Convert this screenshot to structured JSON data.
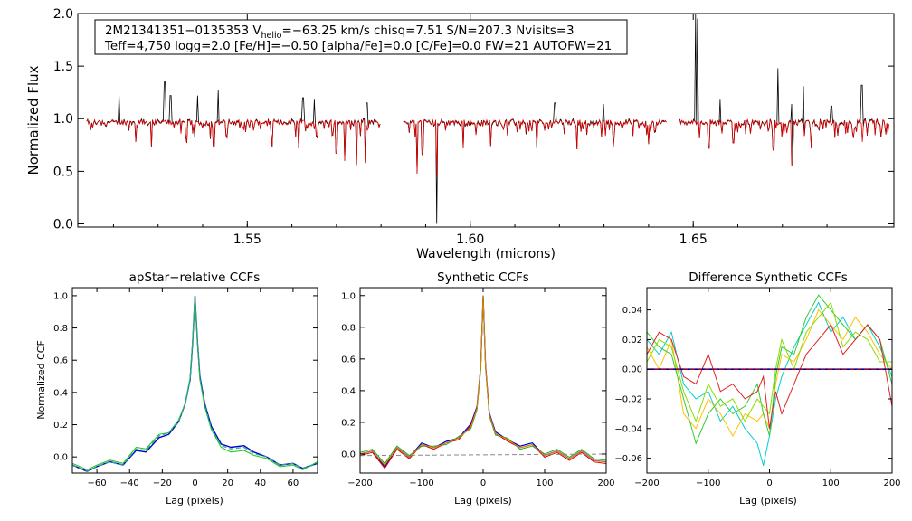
{
  "chart_data": [
    {
      "type": "line",
      "id": "spectrum",
      "title": "",
      "xlabel": "Wavelength (microns)",
      "ylabel": "Normalized Flux",
      "xlim": [
        1.512,
        1.695
      ],
      "ylim": [
        -0.03,
        2.0
      ],
      "xticks": [
        1.55,
        1.6,
        1.65
      ],
      "xtick_labels": [
        "1.55",
        "1.60",
        "1.65"
      ],
      "yticks": [
        0.0,
        0.5,
        1.0,
        1.5,
        2.0
      ],
      "ytick_labels": [
        "0.0",
        "0.5",
        "1.0",
        "1.5",
        "2.0"
      ],
      "info_box": {
        "line1_prefix": "2M21341351−0135353  V",
        "line1_sub": "helio",
        "line1_suffix": "=−63.25 km/s  chisq=7.51  S/N=207.3  Nvisits=3",
        "line2": "Teff=4,750 logg=2.0 [Fe/H]=−0.50 [alpha/Fe]=0.0 [C/Fe]=0.0 FW=21 AUTOFW=21"
      },
      "chips": [
        [
          1.514,
          1.58
        ],
        [
          1.585,
          1.644
        ],
        [
          1.647,
          1.694
        ]
      ],
      "series": [
        {
          "name": "observed",
          "color": "#000000"
        },
        {
          "name": "model",
          "color": "#dd0000"
        }
      ],
      "emission_spikes": [
        {
          "x": 1.5212,
          "y": 1.23
        },
        {
          "x": 1.5315,
          "y": 1.35
        },
        {
          "x": 1.5328,
          "y": 1.22
        },
        {
          "x": 1.5388,
          "y": 1.22
        },
        {
          "x": 1.5435,
          "y": 1.27
        },
        {
          "x": 1.5625,
          "y": 1.2
        },
        {
          "x": 1.565,
          "y": 1.18
        },
        {
          "x": 1.5768,
          "y": 1.15
        },
        {
          "x": 1.619,
          "y": 1.15
        },
        {
          "x": 1.6298,
          "y": 1.14
        },
        {
          "x": 1.6505,
          "y": 2.0
        },
        {
          "x": 1.6509,
          "y": 1.95
        },
        {
          "x": 1.6561,
          "y": 1.18
        },
        {
          "x": 1.669,
          "y": 1.48
        },
        {
          "x": 1.672,
          "y": 1.14
        },
        {
          "x": 1.6747,
          "y": 1.31
        },
        {
          "x": 1.681,
          "y": 1.12
        },
        {
          "x": 1.6878,
          "y": 1.32
        }
      ],
      "absorption_dips": [
        {
          "x": 1.525,
          "y": 0.78
        },
        {
          "x": 1.5285,
          "y": 0.73
        },
        {
          "x": 1.5365,
          "y": 0.77
        },
        {
          "x": 1.5425,
          "y": 0.74
        },
        {
          "x": 1.5555,
          "y": 0.73
        },
        {
          "x": 1.5615,
          "y": 0.72
        },
        {
          "x": 1.57,
          "y": 0.67
        },
        {
          "x": 1.5718,
          "y": 0.6
        },
        {
          "x": 1.5745,
          "y": 0.56
        },
        {
          "x": 1.5765,
          "y": 0.58
        },
        {
          "x": 1.588,
          "y": 0.48
        },
        {
          "x": 1.5893,
          "y": 0.66
        },
        {
          "x": 1.5925,
          "y": 0.0
        },
        {
          "x": 1.5985,
          "y": 0.72
        },
        {
          "x": 1.6045,
          "y": 0.74
        },
        {
          "x": 1.615,
          "y": 0.72
        },
        {
          "x": 1.624,
          "y": 0.71
        },
        {
          "x": 1.632,
          "y": 0.73
        },
        {
          "x": 1.64,
          "y": 0.76
        },
        {
          "x": 1.6535,
          "y": 0.72
        },
        {
          "x": 1.659,
          "y": 0.77
        },
        {
          "x": 1.668,
          "y": 0.7
        },
        {
          "x": 1.6722,
          "y": 0.56
        },
        {
          "x": 1.6765,
          "y": 0.72
        },
        {
          "x": 1.688,
          "y": 0.78
        }
      ]
    },
    {
      "type": "line",
      "id": "apstar-ccf",
      "title": "apStar−relative CCFs",
      "xlabel": "Lag (pixels)",
      "ylabel": "Normalized CCF",
      "xlim": [
        -75,
        75
      ],
      "ylim": [
        -0.1,
        1.05
      ],
      "xticks": [
        -60,
        -40,
        -20,
        0,
        20,
        40,
        60
      ],
      "xtick_labels": [
        "−60",
        "−40",
        "−20",
        "0",
        "20",
        "40",
        "60"
      ],
      "yticks": [
        0.0,
        0.2,
        0.4,
        0.6,
        0.8,
        1.0
      ],
      "ytick_labels": [
        "0.0",
        "0.2",
        "0.4",
        "0.6",
        "0.8",
        "1.0"
      ],
      "series": [
        {
          "name": "visit-blue",
          "color": "#0000cc",
          "width": 1.4,
          "x": [
            -75,
            -66,
            -60,
            -52,
            -44,
            -36,
            -30,
            -22,
            -16,
            -10,
            -6,
            -3,
            -1.5,
            0,
            1.5,
            3,
            6,
            10,
            16,
            22,
            30,
            36,
            44,
            52,
            60,
            66,
            75
          ],
          "y": [
            -0.05,
            -0.09,
            -0.06,
            -0.03,
            -0.05,
            0.04,
            0.03,
            0.12,
            0.14,
            0.22,
            0.33,
            0.48,
            0.7,
            1.0,
            0.72,
            0.5,
            0.33,
            0.19,
            0.08,
            0.06,
            0.07,
            0.03,
            0.0,
            -0.05,
            -0.04,
            -0.07,
            -0.04
          ]
        },
        {
          "name": "visit-green",
          "color": "#22cc22",
          "width": 1.1,
          "x": [
            -75,
            -66,
            -60,
            -52,
            -44,
            -36,
            -30,
            -22,
            -16,
            -10,
            -6,
            -3,
            -1.5,
            0,
            1.5,
            3,
            6,
            10,
            16,
            22,
            30,
            36,
            44,
            52,
            60,
            66,
            75
          ],
          "y": [
            -0.04,
            -0.08,
            -0.05,
            -0.02,
            -0.04,
            0.06,
            0.05,
            0.14,
            0.15,
            0.23,
            0.33,
            0.49,
            0.71,
            1.0,
            0.71,
            0.48,
            0.31,
            0.17,
            0.06,
            0.03,
            0.04,
            0.01,
            -0.01,
            -0.06,
            -0.05,
            -0.08,
            -0.03
          ]
        },
        {
          "name": "visit-teal-dashed",
          "color": "#2aa198",
          "width": 1.1,
          "dashed": true,
          "x": [
            -75,
            -66,
            -60,
            -52,
            -44,
            -36,
            -30,
            -22,
            -16,
            -10,
            -6,
            -3,
            -1.5,
            0,
            1.5,
            3,
            6,
            10,
            16,
            22,
            30,
            36,
            44,
            52,
            60,
            66,
            75
          ],
          "y": [
            -0.05,
            -0.09,
            -0.06,
            -0.03,
            -0.05,
            0.05,
            0.04,
            0.13,
            0.15,
            0.22,
            0.33,
            0.48,
            0.7,
            1.0,
            0.72,
            0.49,
            0.32,
            0.18,
            0.07,
            0.05,
            0.06,
            0.02,
            0.0,
            -0.05,
            -0.04,
            -0.07,
            -0.04
          ]
        }
      ]
    },
    {
      "type": "line",
      "id": "synthetic-ccf",
      "title": "Synthetic CCFs",
      "xlabel": "Lag (pixels)",
      "ylabel": "",
      "xlim": [
        -200,
        200
      ],
      "ylim": [
        -0.12,
        1.05
      ],
      "xticks": [
        -200,
        -100,
        0,
        100,
        200
      ],
      "xtick_labels": [
        "−200",
        "−100",
        "0",
        "100",
        "200"
      ],
      "yticks": [
        0.0,
        0.2,
        0.4,
        0.6,
        0.8,
        1.0
      ],
      "ytick_labels": [
        "0.0",
        "0.2",
        "0.4",
        "0.6",
        "0.8",
        "1.0"
      ],
      "series": [
        {
          "name": "synth-blue",
          "color": "#0000cc",
          "width": 1.2,
          "x": [
            -200,
            -180,
            -160,
            -140,
            -120,
            -100,
            -80,
            -60,
            -40,
            -20,
            -10,
            -4,
            0,
            4,
            10,
            20,
            40,
            60,
            80,
            100,
            120,
            140,
            160,
            180,
            200
          ],
          "y": [
            0.0,
            0.02,
            -0.08,
            0.04,
            -0.02,
            0.07,
            0.04,
            0.08,
            0.1,
            0.19,
            0.3,
            0.55,
            1.0,
            0.56,
            0.26,
            0.14,
            0.09,
            0.05,
            0.07,
            -0.01,
            0.02,
            -0.03,
            0.02,
            -0.04,
            -0.05
          ]
        },
        {
          "name": "synth-red",
          "color": "#dd0000",
          "width": 1.0,
          "x": [
            -200,
            -180,
            -160,
            -140,
            -120,
            -100,
            -80,
            -60,
            -40,
            -20,
            -10,
            -4,
            0,
            4,
            10,
            20,
            40,
            60,
            80,
            100,
            120,
            140,
            160,
            180,
            200
          ],
          "y": [
            -0.01,
            0.01,
            -0.09,
            0.03,
            -0.03,
            0.06,
            0.03,
            0.07,
            0.09,
            0.18,
            0.29,
            0.54,
            1.0,
            0.55,
            0.25,
            0.13,
            0.08,
            0.04,
            0.06,
            -0.02,
            0.01,
            -0.04,
            0.01,
            -0.05,
            -0.06
          ]
        },
        {
          "name": "synth-green",
          "color": "#22aa22",
          "width": 1.0,
          "x": [
            -200,
            -180,
            -160,
            -140,
            -120,
            -100,
            -80,
            -60,
            -40,
            -20,
            -10,
            -4,
            0,
            4,
            10,
            20,
            40,
            60,
            80,
            100,
            120,
            140,
            160,
            180,
            200
          ],
          "y": [
            0.01,
            0.03,
            -0.06,
            0.05,
            -0.01,
            0.05,
            0.05,
            0.06,
            0.11,
            0.16,
            0.28,
            0.53,
            1.0,
            0.54,
            0.24,
            0.12,
            0.1,
            0.03,
            0.05,
            0.0,
            0.03,
            -0.02,
            0.03,
            -0.03,
            -0.04
          ]
        },
        {
          "name": "synth-orange",
          "color": "#e08000",
          "width": 1.0,
          "x": [
            -200,
            -180,
            -160,
            -140,
            -120,
            -100,
            -80,
            -60,
            -40,
            -20,
            -10,
            -4,
            0,
            4,
            10,
            20,
            40,
            60,
            80,
            100,
            120,
            140,
            160,
            180,
            200
          ],
          "y": [
            0.0,
            0.02,
            -0.07,
            0.04,
            -0.02,
            0.06,
            0.04,
            0.07,
            0.1,
            0.17,
            0.29,
            0.55,
            1.0,
            0.55,
            0.25,
            0.13,
            0.09,
            0.04,
            0.06,
            -0.01,
            0.02,
            -0.03,
            0.02,
            -0.04,
            -0.05
          ]
        },
        {
          "name": "synth-baseline-dashed",
          "color": "#888888",
          "width": 1.0,
          "dashed": true,
          "x": [
            -200,
            200
          ],
          "y": [
            -0.01,
            0.0
          ]
        }
      ]
    },
    {
      "type": "line",
      "id": "difference-ccf",
      "title": "Difference Synthetic CCFs",
      "xlabel": "Lag (pixels)",
      "ylabel": "",
      "xlim": [
        -200,
        200
      ],
      "ylim": [
        -0.07,
        0.055
      ],
      "xticks": [
        -200,
        -100,
        0,
        100,
        200
      ],
      "xtick_labels": [
        "−200",
        "−100",
        "0",
        "100",
        "200"
      ],
      "yticks": [
        -0.06,
        -0.04,
        -0.02,
        0.0,
        0.02,
        0.04
      ],
      "ytick_labels": [
        "−0.06",
        "−0.04",
        "−0.02",
        "0.00",
        "0.02",
        "0.04"
      ],
      "series": [
        {
          "name": "diff-cyan",
          "color": "#00d0d0",
          "width": 1.0,
          "x": [
            -200,
            -180,
            -160,
            -140,
            -120,
            -100,
            -80,
            -60,
            -40,
            -20,
            -10,
            0,
            10,
            20,
            40,
            60,
            80,
            100,
            120,
            140,
            160,
            180,
            200
          ],
          "y": [
            0.02,
            0.01,
            0.025,
            -0.01,
            -0.02,
            -0.015,
            -0.035,
            -0.025,
            -0.04,
            -0.05,
            -0.065,
            -0.045,
            -0.02,
            -0.005,
            0.015,
            0.03,
            0.045,
            0.025,
            0.035,
            0.02,
            0.03,
            0.015,
            -0.005
          ]
        },
        {
          "name": "diff-orange",
          "color": "#ffc000",
          "width": 1.0,
          "x": [
            -200,
            -180,
            -160,
            -140,
            -120,
            -100,
            -80,
            -60,
            -40,
            -20,
            -10,
            0,
            10,
            20,
            40,
            60,
            80,
            100,
            120,
            140,
            160,
            180,
            200
          ],
          "y": [
            0.015,
            0.0,
            0.02,
            -0.03,
            -0.04,
            -0.02,
            -0.03,
            -0.045,
            -0.03,
            -0.035,
            -0.03,
            -0.04,
            -0.01,
            0.01,
            0.005,
            0.02,
            0.04,
            0.03,
            0.02,
            0.035,
            0.025,
            0.01,
            0.0
          ]
        },
        {
          "name": "diff-green",
          "color": "#33cc33",
          "width": 1.0,
          "x": [
            -200,
            -180,
            -160,
            -140,
            -120,
            -100,
            -80,
            -60,
            -40,
            -20,
            -10,
            0,
            10,
            20,
            40,
            60,
            80,
            100,
            120,
            140,
            160,
            180,
            200
          ],
          "y": [
            0.025,
            0.015,
            0.01,
            -0.02,
            -0.05,
            -0.03,
            -0.02,
            -0.03,
            -0.025,
            -0.01,
            -0.03,
            -0.045,
            -0.005,
            0.015,
            0.01,
            0.035,
            0.05,
            0.04,
            0.03,
            0.02,
            0.03,
            0.02,
            -0.01
          ]
        },
        {
          "name": "diff-lime",
          "color": "#88dd00",
          "width": 1.0,
          "x": [
            -200,
            -180,
            -160,
            -140,
            -120,
            -100,
            -80,
            -60,
            -40,
            -20,
            -10,
            0,
            10,
            20,
            40,
            60,
            80,
            100,
            120,
            140,
            160,
            180,
            200
          ],
          "y": [
            0.005,
            0.02,
            0.015,
            -0.015,
            -0.035,
            -0.01,
            -0.025,
            -0.02,
            -0.035,
            -0.02,
            -0.025,
            -0.03,
            0.0,
            0.02,
            0.0,
            0.025,
            0.035,
            0.045,
            0.015,
            0.025,
            0.02,
            0.005,
            0.005
          ]
        },
        {
          "name": "diff-red",
          "color": "#dd2222",
          "width": 1.0,
          "x": [
            -200,
            -180,
            -160,
            -140,
            -120,
            -100,
            -80,
            -60,
            -40,
            -20,
            -10,
            0,
            10,
            20,
            40,
            60,
            80,
            100,
            120,
            140,
            160,
            180,
            200
          ],
          "y": [
            0.01,
            0.025,
            0.02,
            -0.005,
            -0.01,
            0.01,
            -0.015,
            -0.01,
            -0.02,
            -0.015,
            -0.005,
            -0.04,
            -0.015,
            -0.03,
            -0.01,
            0.01,
            0.02,
            0.03,
            0.01,
            0.02,
            0.03,
            0.02,
            -0.025
          ]
        },
        {
          "name": "diff-zero-blue",
          "color": "#000099",
          "width": 1.6,
          "x": [
            -200,
            200
          ],
          "y": [
            0.0,
            0.0
          ]
        },
        {
          "name": "diff-zero-red-dashed",
          "color": "#dd0000",
          "width": 1.0,
          "dashed": true,
          "x": [
            -200,
            200
          ],
          "y": [
            0.0,
            0.0
          ]
        }
      ]
    }
  ]
}
